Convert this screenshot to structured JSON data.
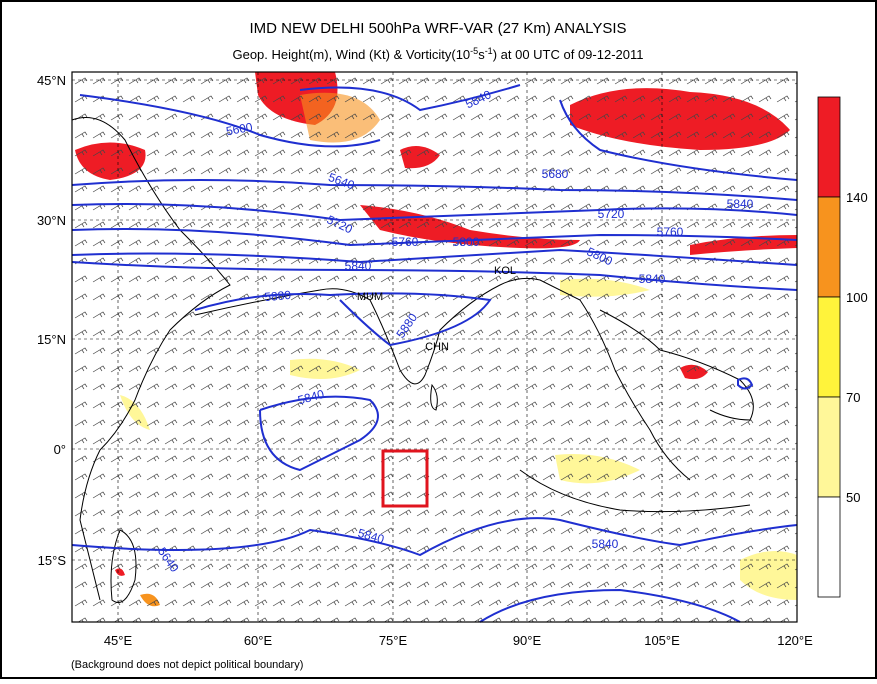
{
  "header": {
    "title": "IMD NEW DELHI 500hPa WRF-VAR (27 Km) ANALYSIS",
    "subtitle": {
      "before": "Geop. Height(m), Wind (Kt) & Vorticity(10",
      "exp1": "-5",
      "mid": "s",
      "exp2": "-1",
      "after": ") at 00 UTC of 09-12-2011"
    }
  },
  "map": {
    "lat_labels": [
      "45°N",
      "30°N",
      "15°N",
      "0°",
      "15°S"
    ],
    "lon_labels": [
      "45°E",
      "60°E",
      "75°E",
      "90°E",
      "105°E",
      "120°E"
    ],
    "contour_labels": [
      "5840",
      "5600",
      "5640",
      "5680",
      "5720",
      "5760",
      "5800",
      "5840",
      "5880",
      "5880",
      "5840",
      "5840",
      "5840",
      "5720",
      "5760",
      "5800",
      "5840",
      "5840",
      "5640"
    ],
    "city_labels": [
      "MUM",
      "CHN",
      "KOL"
    ]
  },
  "colorbar": {
    "labels": [
      "140",
      "100",
      "70",
      "50"
    ]
  },
  "footnote": "(Background does not depict political boundary)"
}
